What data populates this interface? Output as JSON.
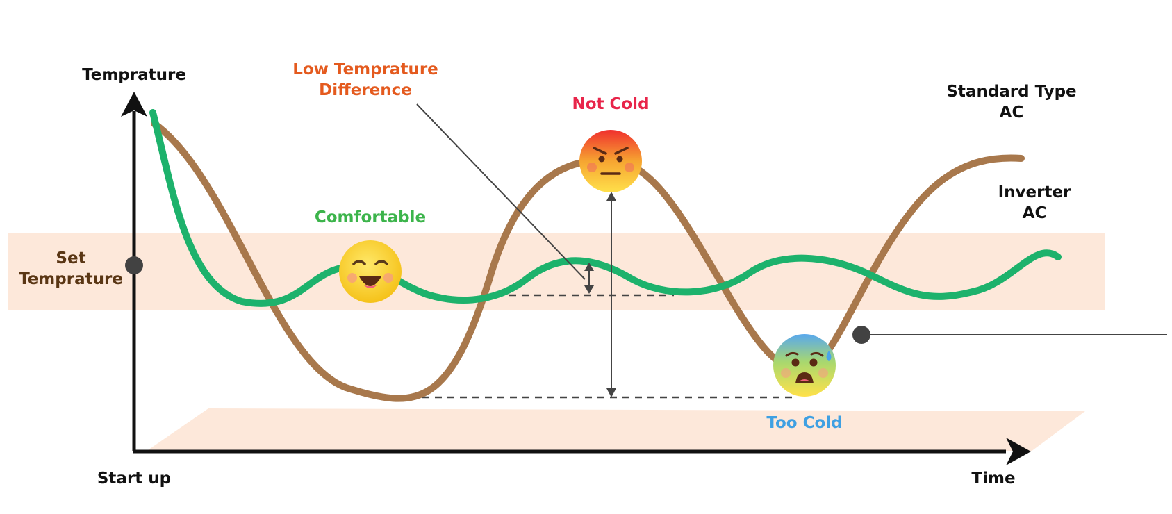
{
  "colors": {
    "standard": "#A8784C",
    "inverter": "#1DB26C",
    "band": "#FDE8DA",
    "axis": "#111111",
    "guide": "#444444",
    "dot": "#424242",
    "set_label": "#5A3614",
    "low_diff_label": "#E45A1E",
    "not_cold_label": "#E8254A",
    "comfortable_label": "#3CB44B",
    "too_cold_label": "#3FA0E2"
  },
  "labels": {
    "y_axis": "Temprature",
    "x_axis": "Time",
    "origin": "Start up",
    "set_temp": [
      "Set",
      "Temprature"
    ],
    "low_diff": [
      "Low Temprature",
      "Difference"
    ],
    "not_cold": "Not Cold",
    "comfortable": "Comfortable",
    "too_cold": "Too Cold",
    "standard": [
      "Standard Type",
      "AC"
    ],
    "inverter": [
      "Inverter",
      "AC"
    ]
  },
  "icons": {
    "comfortable": "happy-face-icon",
    "not_cold": "angry-face-icon",
    "too_cold": "freezing-face-icon"
  }
}
